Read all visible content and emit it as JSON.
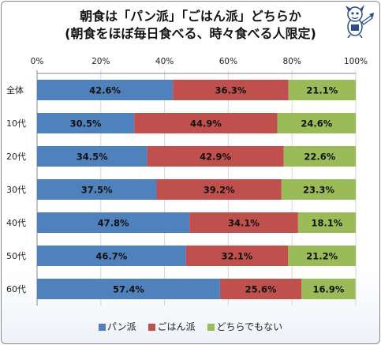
{
  "title_line1": "朝食は「パン派」「ごはん派」どちらか",
  "title_line2": "(朝食をほぼ毎日食べる、時々食べる人限定)",
  "mascot_icon": "mascot-character-icon",
  "chart_data": {
    "type": "bar",
    "orientation": "horizontal",
    "stacked": "percent",
    "title": "朝食は「パン派」「ごはん派」どちらか (朝食をほぼ毎日食べる、時々食べる人限定)",
    "categories": [
      "全体",
      "10代",
      "20代",
      "30代",
      "40代",
      "50代",
      "60代"
    ],
    "series": [
      {
        "name": "パン派",
        "color": "#4F81BD",
        "values": [
          42.6,
          30.5,
          34.5,
          37.5,
          47.8,
          46.7,
          57.4
        ]
      },
      {
        "name": "ごはん派",
        "color": "#C0504D",
        "values": [
          36.3,
          44.9,
          42.9,
          39.2,
          34.1,
          32.1,
          25.6
        ]
      },
      {
        "name": "どちらでもない",
        "color": "#9BBB59",
        "values": [
          21.1,
          24.6,
          22.6,
          23.3,
          18.1,
          21.2,
          16.9
        ]
      }
    ],
    "value_labels": [
      [
        "42.6%",
        "36.3%",
        "21.1%"
      ],
      [
        "30.5%",
        "44.9%",
        "24.6%"
      ],
      [
        "34.5%",
        "42.9%",
        "22.6%"
      ],
      [
        "37.5%",
        "39.2%",
        "23.3%"
      ],
      [
        "47.8%",
        "34.1%",
        "18.1%"
      ],
      [
        "46.7%",
        "32.1%",
        "21.2%"
      ],
      [
        "57.4%",
        "25.6%",
        "16.9%"
      ]
    ],
    "xlim": [
      0,
      100
    ],
    "x_ticks": [
      "0%",
      "20%",
      "40%",
      "60%",
      "80%",
      "100%"
    ],
    "x_axis_position": "top",
    "grid": true,
    "legend_position": "bottom"
  }
}
